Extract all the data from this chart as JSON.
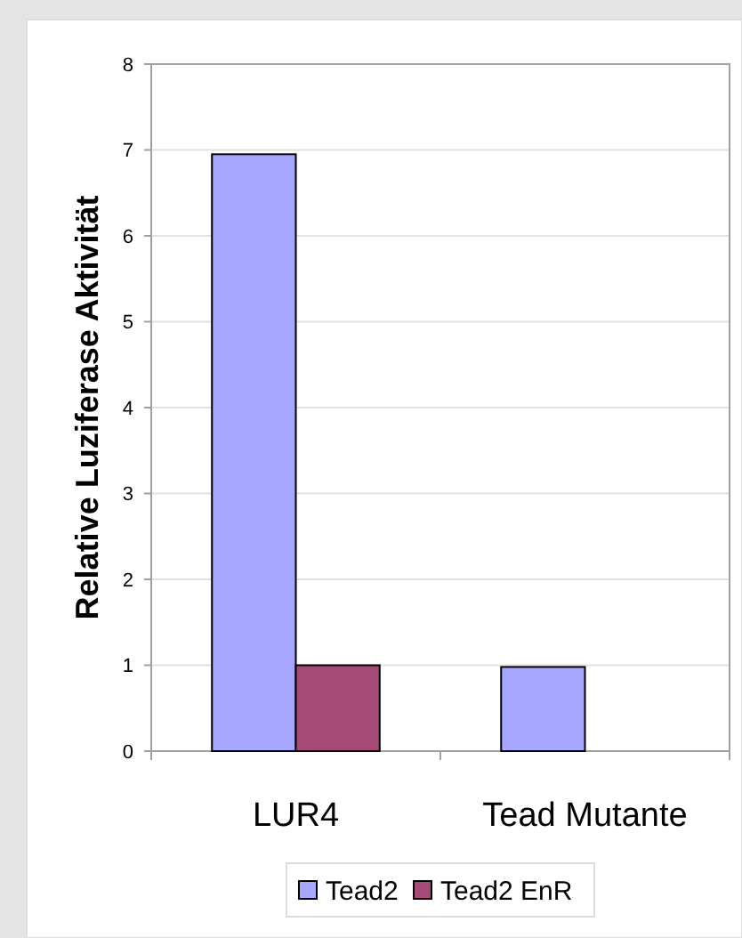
{
  "chart_data": {
    "type": "bar",
    "ylabel": "Relative Luziferase Aktivität",
    "categories": [
      "LUR4",
      "Tead Mutante"
    ],
    "series": [
      {
        "name": "Tead2",
        "color": "#a6a6ff",
        "values": [
          6.95,
          0.98
        ]
      },
      {
        "name": "Tead2 EnR",
        "color": "#a64a78",
        "values": [
          1.0,
          null
        ]
      }
    ],
    "ylim": [
      0,
      8
    ],
    "yticks": [
      0,
      1,
      2,
      3,
      4,
      5,
      6,
      7,
      8
    ],
    "grid": "y",
    "legend": "bottom"
  }
}
